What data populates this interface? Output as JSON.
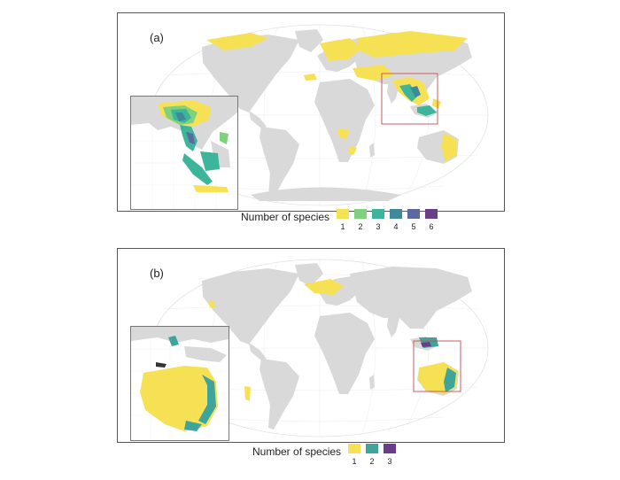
{
  "panels": [
    {
      "label": "(a)",
      "legend": {
        "title": "Number of species",
        "items": [
          {
            "value": "1",
            "color": "#f6e155"
          },
          {
            "value": "2",
            "color": "#7fd17c"
          },
          {
            "value": "3",
            "color": "#3db59a"
          },
          {
            "value": "4",
            "color": "#3f8a9a"
          },
          {
            "value": "5",
            "color": "#5c68a2"
          },
          {
            "value": "6",
            "color": "#6a3d8a"
          }
        ]
      }
    },
    {
      "label": "(b)",
      "legend": {
        "title": "Number of species",
        "items": [
          {
            "value": "1",
            "color": "#f6e155"
          },
          {
            "value": "2",
            "color": "#3fa59a"
          },
          {
            "value": "3",
            "color": "#6a3d8a"
          }
        ]
      }
    }
  ],
  "colors": {
    "land": "#d9d9d9",
    "graticule": "#e6e6e6",
    "highlight_box": "#c44e52"
  }
}
